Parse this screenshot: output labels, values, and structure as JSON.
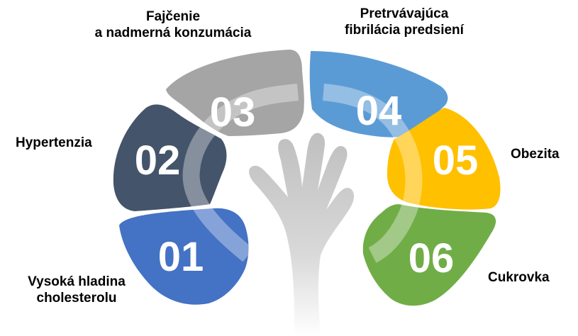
{
  "colors": {
    "blue": "#4472c4",
    "navy": "#44546a",
    "gray": "#a5a5a5",
    "lightblue": "#5b9bd5",
    "yellow": "#ffc000",
    "green": "#70ad47",
    "hand": "#d0d0d0"
  },
  "segments": [
    {
      "number": "01",
      "label_lines": [
        "Vysoká hladina",
        "cholesterolu"
      ],
      "color": "#4472c4"
    },
    {
      "number": "02",
      "label_lines": [
        "Hypertenzia"
      ],
      "color": "#44546a"
    },
    {
      "number": "03",
      "label_lines": [
        "Fajčenie",
        "a nadmerná konzumácia"
      ],
      "color": "#a5a5a5"
    },
    {
      "number": "04",
      "label_lines": [
        "Pretrvávajúca",
        "fibrilácia predsiení"
      ],
      "color": "#5b9bd5"
    },
    {
      "number": "05",
      "label_lines": [
        "Obezita"
      ],
      "color": "#ffc000"
    },
    {
      "number": "06",
      "label_lines": [
        "Cukrovka"
      ],
      "color": "#70ad47"
    }
  ],
  "center_icon": "open-hand-icon"
}
